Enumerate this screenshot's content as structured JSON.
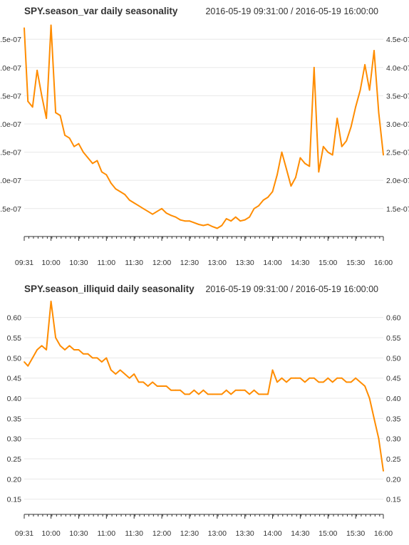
{
  "colors": {
    "series": "#ff8c00",
    "grid": "#e8e8e8",
    "axis": "#333333"
  },
  "chart_data": [
    {
      "type": "line",
      "title": "SPY.season_var daily seasonality",
      "subtitle": "2016-05-19 09:31:00 / 2016-05-19 16:00:00",
      "xlabel": "",
      "ylabel": "",
      "x_tick_labels": [
        "09:31",
        "10:00",
        "10:30",
        "11:00",
        "11:30",
        "12:00",
        "12:30",
        "13:00",
        "13:30",
        "14:00",
        "14:30",
        "15:00",
        "15:30",
        "16:00"
      ],
      "y_tick_labels_left": [
        "1.5e-07",
        "2.0e-07",
        "2.5e-07",
        "3.0e-07",
        "3.5e-07",
        "4.0e-07",
        "4.5e-07"
      ],
      "y_tick_labels_right": [
        "1.5e-07",
        "2.0e-07",
        "2.5e-07",
        "3.0e-07",
        "3.5e-07",
        "4.0e-07",
        "4.5e-07"
      ],
      "y_ticks": [
        1.5e-07,
        2e-07,
        2.5e-07,
        3e-07,
        3.5e-07,
        4e-07,
        4.5e-07
      ],
      "ylim": [
        1.03e-07,
        4.78e-07
      ],
      "grid": true,
      "legend": "none",
      "series": [
        {
          "x": [
            "09:31",
            "09:35",
            "09:40",
            "09:45",
            "09:50",
            "09:55",
            "10:00",
            "10:05",
            "10:10",
            "10:15",
            "10:20",
            "10:25",
            "10:30",
            "10:35",
            "10:40",
            "10:45",
            "10:50",
            "10:55",
            "11:00",
            "11:05",
            "11:10",
            "11:15",
            "11:20",
            "11:25",
            "11:30",
            "11:35",
            "11:40",
            "11:45",
            "11:50",
            "11:55",
            "12:00",
            "12:05",
            "12:10",
            "12:15",
            "12:20",
            "12:25",
            "12:30",
            "12:35",
            "12:40",
            "12:45",
            "12:50",
            "12:55",
            "13:00",
            "13:05",
            "13:10",
            "13:15",
            "13:20",
            "13:25",
            "13:30",
            "13:35",
            "13:40",
            "13:45",
            "13:50",
            "13:55",
            "14:00",
            "14:05",
            "14:10",
            "14:15",
            "14:20",
            "14:25",
            "14:30",
            "14:35",
            "14:40",
            "14:45",
            "14:50",
            "14:55",
            "15:00",
            "15:05",
            "15:10",
            "15:15",
            "15:20",
            "15:25",
            "15:30",
            "15:35",
            "15:40",
            "15:45",
            "15:50",
            "15:55",
            "16:00"
          ],
          "values": [
            4.7e-07,
            3.4e-07,
            3.3e-07,
            3.95e-07,
            3.5e-07,
            3.1e-07,
            4.75e-07,
            3.2e-07,
            3.15e-07,
            2.8e-07,
            2.75e-07,
            2.6e-07,
            2.65e-07,
            2.5e-07,
            2.4e-07,
            2.3e-07,
            2.35e-07,
            2.15e-07,
            2.1e-07,
            1.95e-07,
            1.85e-07,
            1.8e-07,
            1.75e-07,
            1.65e-07,
            1.6e-07,
            1.55e-07,
            1.5e-07,
            1.45e-07,
            1.4e-07,
            1.45e-07,
            1.5e-07,
            1.42e-07,
            1.38e-07,
            1.35e-07,
            1.3e-07,
            1.28e-07,
            1.28e-07,
            1.25e-07,
            1.22e-07,
            1.2e-07,
            1.22e-07,
            1.18e-07,
            1.15e-07,
            1.2e-07,
            1.32e-07,
            1.28e-07,
            1.35e-07,
            1.28e-07,
            1.3e-07,
            1.35e-07,
            1.5e-07,
            1.55e-07,
            1.65e-07,
            1.7e-07,
            1.8e-07,
            2.1e-07,
            2.5e-07,
            2.2e-07,
            1.9e-07,
            2.05e-07,
            2.4e-07,
            2.3e-07,
            2.25e-07,
            4e-07,
            2.15e-07,
            2.6e-07,
            2.5e-07,
            2.45e-07,
            3.1e-07,
            2.6e-07,
            2.7e-07,
            2.95e-07,
            3.3e-07,
            3.6e-07,
            4.05e-07,
            3.6e-07,
            4.3e-07,
            3.2e-07,
            2.45e-07
          ]
        }
      ]
    },
    {
      "type": "line",
      "title": "SPY.season_illiquid daily seasonality",
      "subtitle": "2016-05-19 09:31:00 / 2016-05-19 16:00:00",
      "xlabel": "",
      "ylabel": "",
      "x_tick_labels": [
        "09:31",
        "10:00",
        "10:30",
        "11:00",
        "11:30",
        "12:00",
        "12:30",
        "13:00",
        "13:30",
        "14:00",
        "14:30",
        "15:00",
        "15:30",
        "16:00"
      ],
      "y_tick_labels_left": [
        "0.15",
        "0.20",
        "0.25",
        "0.30",
        "0.35",
        "0.40",
        "0.45",
        "0.50",
        "0.55",
        "0.60"
      ],
      "y_tick_labels_right": [
        "0.15",
        "0.20",
        "0.25",
        "0.30",
        "0.35",
        "0.40",
        "0.45",
        "0.50",
        "0.55",
        "0.60"
      ],
      "y_ticks": [
        0.15,
        0.2,
        0.25,
        0.3,
        0.35,
        0.4,
        0.45,
        0.5,
        0.55,
        0.6
      ],
      "ylim": [
        0.116,
        0.64
      ],
      "grid": true,
      "legend": "none",
      "series": [
        {
          "x": [
            "09:31",
            "09:35",
            "09:40",
            "09:45",
            "09:50",
            "09:55",
            "10:00",
            "10:05",
            "10:10",
            "10:15",
            "10:20",
            "10:25",
            "10:30",
            "10:35",
            "10:40",
            "10:45",
            "10:50",
            "10:55",
            "11:00",
            "11:05",
            "11:10",
            "11:15",
            "11:20",
            "11:25",
            "11:30",
            "11:35",
            "11:40",
            "11:45",
            "11:50",
            "11:55",
            "12:00",
            "12:05",
            "12:10",
            "12:15",
            "12:20",
            "12:25",
            "12:30",
            "12:35",
            "12:40",
            "12:45",
            "12:50",
            "12:55",
            "13:00",
            "13:05",
            "13:10",
            "13:15",
            "13:20",
            "13:25",
            "13:30",
            "13:35",
            "13:40",
            "13:45",
            "13:50",
            "13:55",
            "14:00",
            "14:05",
            "14:10",
            "14:15",
            "14:20",
            "14:25",
            "14:30",
            "14:35",
            "14:40",
            "14:45",
            "14:50",
            "14:55",
            "15:00",
            "15:05",
            "15:10",
            "15:15",
            "15:20",
            "15:25",
            "15:30",
            "15:35",
            "15:40",
            "15:45",
            "15:50",
            "15:55",
            "16:00"
          ],
          "values": [
            0.49,
            0.48,
            0.5,
            0.52,
            0.53,
            0.52,
            0.64,
            0.55,
            0.53,
            0.52,
            0.53,
            0.52,
            0.52,
            0.51,
            0.51,
            0.5,
            0.5,
            0.49,
            0.5,
            0.47,
            0.46,
            0.47,
            0.46,
            0.45,
            0.46,
            0.44,
            0.44,
            0.43,
            0.44,
            0.43,
            0.43,
            0.43,
            0.42,
            0.42,
            0.42,
            0.41,
            0.41,
            0.42,
            0.41,
            0.42,
            0.41,
            0.41,
            0.41,
            0.41,
            0.42,
            0.41,
            0.42,
            0.42,
            0.42,
            0.41,
            0.42,
            0.41,
            0.41,
            0.41,
            0.47,
            0.44,
            0.45,
            0.44,
            0.45,
            0.45,
            0.45,
            0.44,
            0.45,
            0.45,
            0.44,
            0.44,
            0.45,
            0.44,
            0.45,
            0.45,
            0.44,
            0.44,
            0.45,
            0.44,
            0.43,
            0.4,
            0.35,
            0.3,
            0.22
          ]
        }
      ]
    }
  ]
}
